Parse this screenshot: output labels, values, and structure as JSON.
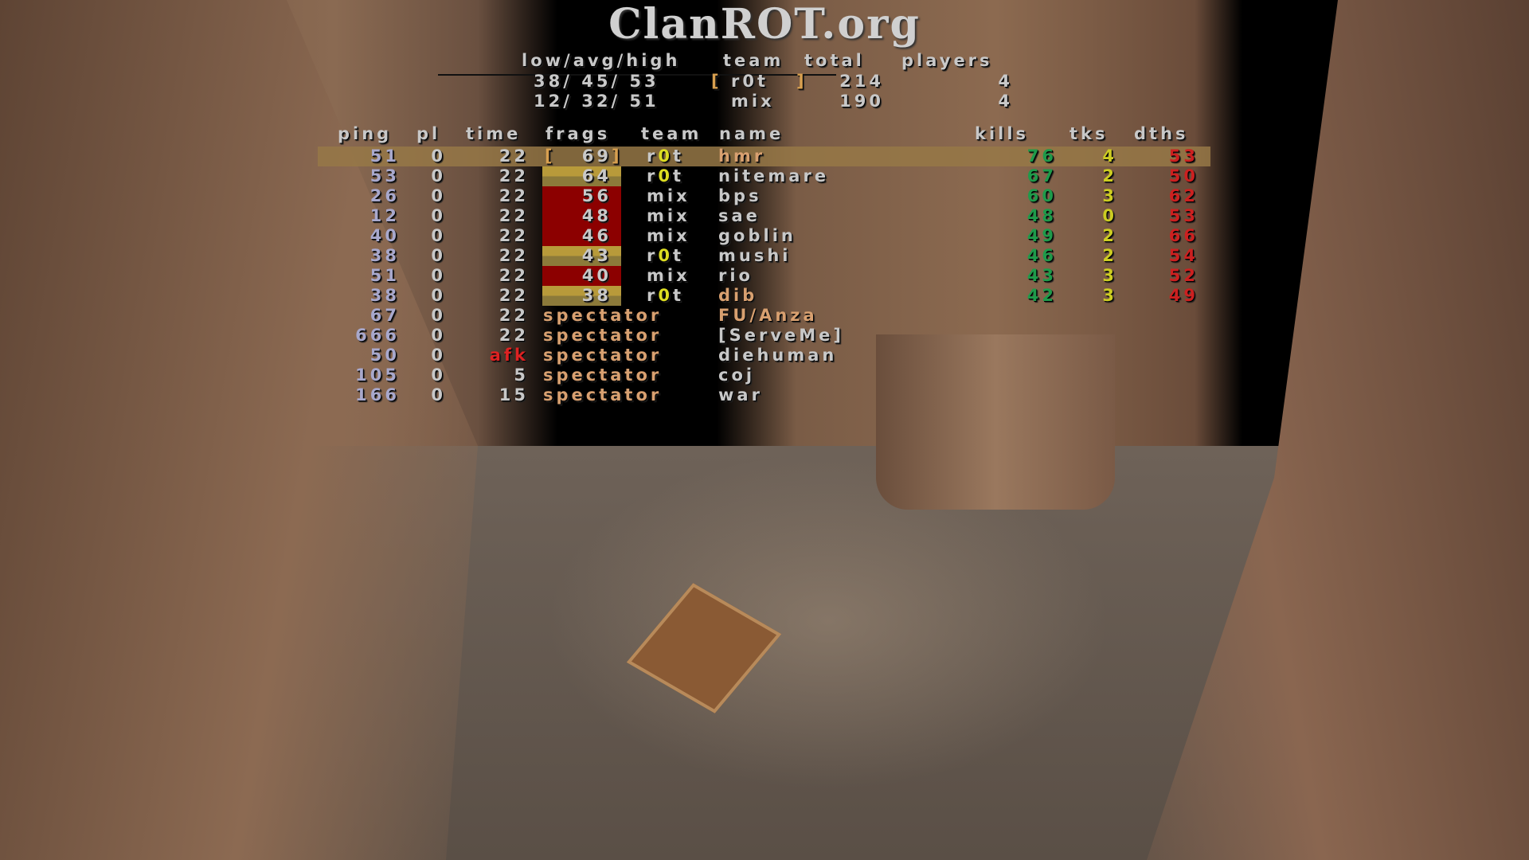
{
  "title": "ClanROT.org",
  "colors": {
    "rot_frags": "#b89a3a",
    "mix_frags": "#8c0000",
    "kills": "#1e9a4a",
    "tks": "#cccc22",
    "dths": "#cc2020",
    "highlight": "#96784a"
  },
  "team_summary": {
    "headers": {
      "lah": "low/avg/high",
      "team": "team",
      "total": "total",
      "players": "players"
    },
    "rows": [
      {
        "lah": "38/ 45/ 53",
        "team": "r0t",
        "bracketed": true,
        "total": "214",
        "players": "4"
      },
      {
        "lah": "12/ 32/ 51",
        "team": "mix",
        "bracketed": false,
        "total": "190",
        "players": "4"
      }
    ]
  },
  "scoreboard": {
    "headers": {
      "ping": "ping",
      "pl": "pl",
      "time": "time",
      "frags": "frags",
      "team": "team",
      "name": "name",
      "kills": "kills",
      "tks": "tks",
      "dths": "dths"
    },
    "players": [
      {
        "ping": "51",
        "pl": "0",
        "time": "22",
        "frags": "69",
        "team": "r0t",
        "name": "hmr",
        "kills": "76",
        "tks": "4",
        "dths": "53",
        "self": true
      },
      {
        "ping": "53",
        "pl": "0",
        "time": "22",
        "frags": "64",
        "team": "r0t",
        "name": "nitemare",
        "kills": "67",
        "tks": "2",
        "dths": "50"
      },
      {
        "ping": "26",
        "pl": "0",
        "time": "22",
        "frags": "56",
        "team": "mix",
        "name": "bps",
        "kills": "60",
        "tks": "3",
        "dths": "62"
      },
      {
        "ping": "12",
        "pl": "0",
        "time": "22",
        "frags": "48",
        "team": "mix",
        "name": "sae",
        "kills": "48",
        "tks": "0",
        "dths": "53"
      },
      {
        "ping": "40",
        "pl": "0",
        "time": "22",
        "frags": "46",
        "team": "mix",
        "name": "goblin",
        "kills": "49",
        "tks": "2",
        "dths": "66"
      },
      {
        "ping": "38",
        "pl": "0",
        "time": "22",
        "frags": "43",
        "team": "r0t",
        "name": "mushi",
        "kills": "46",
        "tks": "2",
        "dths": "54"
      },
      {
        "ping": "51",
        "pl": "0",
        "time": "22",
        "frags": "40",
        "team": "mix",
        "name": "rio",
        "kills": "43",
        "tks": "3",
        "dths": "52"
      },
      {
        "ping": "38",
        "pl": "0",
        "time": "22",
        "frags": "38",
        "team": "r0t",
        "name": "dib",
        "kills": "42",
        "tks": "3",
        "dths": "49"
      }
    ],
    "spectators": [
      {
        "ping": "67",
        "pl": "0",
        "time": "22",
        "label": "spectator",
        "name": "FU/Anza"
      },
      {
        "ping": "666",
        "pl": "0",
        "time": "22",
        "label": "spectator",
        "name": "[ServeMe]"
      },
      {
        "ping": "50",
        "pl": "0",
        "time": "afk",
        "label": "spectator",
        "name": "diehuman",
        "afk": true
      },
      {
        "ping": "105",
        "pl": "0",
        "time": "5",
        "label": "spectator",
        "name": "coj"
      },
      {
        "ping": "166",
        "pl": "0",
        "time": "15",
        "label": "spectator",
        "name": "war"
      }
    ]
  }
}
